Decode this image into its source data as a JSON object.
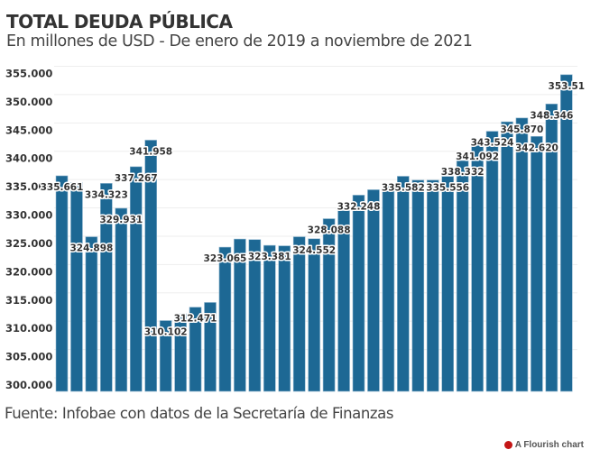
{
  "header": {
    "title": "TOTAL DEUDA PÚBLICA",
    "subtitle": "En millones de USD - De enero de 2019 a noviembre de 2021"
  },
  "footer": {
    "source": "Fuente: Infobae con datos de la Secretaría de Finanzas",
    "credit": "A Flourish chart",
    "credit_icon": "flourish-logo-icon"
  },
  "chart_data": {
    "type": "bar",
    "title": "TOTAL DEUDA PÚBLICA",
    "xlabel": "",
    "ylabel": "",
    "ylim": [
      300,
      355
    ],
    "yticks": [
      "300.000",
      "305.000",
      "310.000",
      "315.000",
      "320.000",
      "325.000",
      "330.000",
      "335.000",
      "340.000",
      "345.000",
      "350.000",
      "355.000"
    ],
    "ytick_values": [
      300,
      305,
      310,
      315,
      320,
      325,
      330,
      335,
      340,
      345,
      350,
      355
    ],
    "grid": true,
    "bar_color": "#1d6894",
    "values": [
      335.661,
      334.5,
      324.898,
      334.323,
      329.931,
      337.267,
      341.958,
      310.102,
      311.3,
      312.471,
      313.3,
      323.065,
      324.5,
      324.4,
      323.381,
      323.3,
      324.9,
      324.552,
      328.088,
      329.5,
      332.248,
      333.2,
      334.0,
      335.582,
      334.9,
      334.9,
      335.556,
      338.332,
      341.092,
      343.524,
      345.2,
      345.87,
      342.62,
      348.346,
      353.51
    ],
    "data_labels": [
      "335.661",
      "",
      "324.898",
      "334.323",
      "329.931",
      "337.267",
      "341.958",
      "310.102",
      "",
      "312.471",
      "",
      "323.065",
      "",
      "",
      "323.381",
      "",
      "",
      "324.552",
      "328.088",
      "",
      "332.248",
      "",
      "",
      "335.582",
      "",
      "",
      "335.556",
      "338.332",
      "341.092",
      "343.524",
      "",
      "345.870",
      "342.620",
      "348.346",
      "353.51"
    ]
  }
}
